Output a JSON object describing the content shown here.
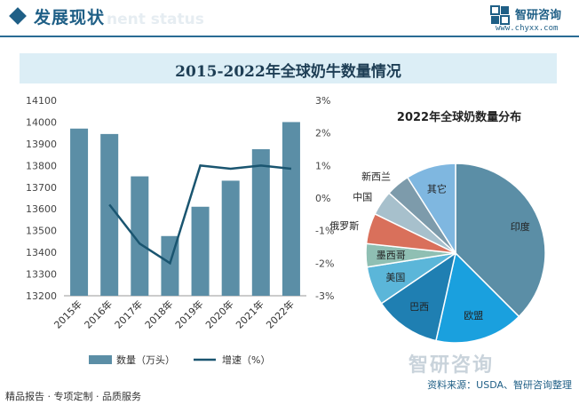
{
  "header": {
    "section_title": "发展现状",
    "section_ghost": "nent status",
    "logo_name": "智研咨询",
    "logo_url": "www.chyxx.com"
  },
  "main_title": "2015-2022年全球奶牛数量情况",
  "chart_data": [
    {
      "type": "bar+line",
      "categories": [
        "2015年",
        "2016年",
        "2017年",
        "2018年",
        "2019年",
        "2020年",
        "2021年",
        "2022年"
      ],
      "series": [
        {
          "name": "数量（万头）",
          "type": "bar",
          "axis": "left",
          "values": [
            13970,
            13945,
            13750,
            13475,
            13610,
            13730,
            13875,
            14000
          ]
        },
        {
          "name": "增速（%）",
          "type": "line",
          "axis": "right",
          "values": [
            null,
            -0.2,
            -1.4,
            -2.0,
            1.0,
            0.9,
            1.0,
            0.9
          ]
        }
      ],
      "y_left": {
        "min": 13200,
        "max": 14100,
        "ticks": [
          13200,
          13300,
          13400,
          13500,
          13600,
          13700,
          13800,
          13900,
          14000,
          14100
        ]
      },
      "y_right": {
        "min": -3,
        "max": 3,
        "ticks": [
          "-3%",
          "-2%",
          "-1%",
          "0%",
          "1%",
          "2%",
          "3%"
        ]
      },
      "colors": {
        "bar": "#5b8ea6",
        "line": "#1a5570"
      },
      "legend": "bottom"
    },
    {
      "type": "pie",
      "title": "2022年全球奶数量分布",
      "slices": [
        {
          "label": "印度",
          "value": 37.5,
          "color": "#5b8ea6"
        },
        {
          "label": "欧盟",
          "value": 16.0,
          "color": "#1aa0de"
        },
        {
          "label": "巴西",
          "value": 12.0,
          "color": "#1f7fb2"
        },
        {
          "label": "美国",
          "value": 7.0,
          "color": "#5bb6d9"
        },
        {
          "label": "墨西哥",
          "value": 4.2,
          "color": "#8fbfb3"
        },
        {
          "label": "俄罗斯",
          "value": 5.5,
          "color": "#d9705b"
        },
        {
          "label": "中国",
          "value": 4.5,
          "color": "#a7c0cc"
        },
        {
          "label": "新西兰",
          "value": 4.3,
          "color": "#7d9bab"
        },
        {
          "label": "其它",
          "value": 9.0,
          "color": "#7fb7e0"
        }
      ]
    }
  ],
  "footer": {
    "left": "精品报告 · 专项定制 · 品质服务",
    "right": "资料来源：USDA、智研咨询整理",
    "brand": "智研咨询"
  }
}
